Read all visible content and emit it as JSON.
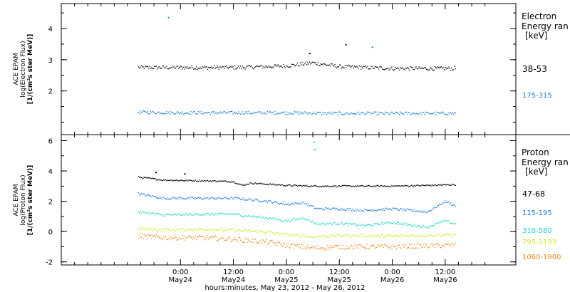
{
  "colors": {
    "electron_38_53": "#000000",
    "electron_175_315": "#1f7fd8",
    "proton_47_68": "#000000",
    "proton_115_195": "#1f7fd8",
    "proton_310_580": "#22d8c8",
    "proton_795_1193": "#c8ee2a",
    "proton_1060_1900": "#f08a1c"
  },
  "x_axis": {
    "label": "hours:minutes, May 23, 2012 - May 26, 2012",
    "ticks": [
      {
        "time": "0:00",
        "date": "May24"
      },
      {
        "time": "12:00",
        "date": "May24"
      },
      {
        "time": "0:00",
        "date": "May25"
      },
      {
        "time": "12:00",
        "date": "May25"
      },
      {
        "time": "0:00",
        "date": "May26"
      },
      {
        "time": "12:00",
        "date": "May26"
      }
    ]
  },
  "chart_data": [
    {
      "type": "scatter",
      "title": "",
      "ylabel_lines": [
        "ACE EPAM",
        "log(Electron Flux)",
        "[1/(cm²s ster MeV)]"
      ],
      "ylim": [
        0.6,
        4.8
      ],
      "yticks": [
        "2",
        "3",
        "4"
      ],
      "grid": false,
      "legend_placement": "right",
      "legend_title_lines": [
        "Electron",
        "Energy ran",
        "[keV]"
      ],
      "x_hours_from_May23_0000": [
        14.5,
        86.3
      ],
      "series": [
        {
          "name": "38-53",
          "color_key": "electron_38_53",
          "x": [
            14.5,
            24,
            36,
            48,
            54,
            60,
            72,
            84,
            86.3
          ],
          "y": [
            2.75,
            2.75,
            2.75,
            2.8,
            2.9,
            2.78,
            2.72,
            2.72,
            2.72
          ]
        },
        {
          "name": "175-315",
          "color_key": "electron_175_315",
          "x": [
            14.5,
            24,
            36,
            48,
            60,
            72,
            86.3
          ],
          "y": [
            1.32,
            1.3,
            1.3,
            1.3,
            1.28,
            1.28,
            1.28
          ]
        }
      ],
      "outliers": [
        {
          "x": 21.3,
          "y": 4.35,
          "series": "175-315"
        },
        {
          "x": 53.3,
          "y": 3.2,
          "series": "38-53"
        },
        {
          "x": 61.5,
          "y": 3.48,
          "series": "38-53"
        },
        {
          "x": 67.5,
          "y": 3.4,
          "series": "175-315"
        }
      ]
    },
    {
      "type": "scatter",
      "title": "",
      "ylabel_lines": [
        "ACE EPAM",
        "log(Proton Flux)",
        "[1/(cm²s ster MeV)]"
      ],
      "ylim": [
        -2.2,
        6.4
      ],
      "yticks": [
        "-2",
        "0",
        "2",
        "4",
        "6"
      ],
      "grid": false,
      "legend_placement": "right",
      "legend_title_lines": [
        "Proton",
        "Energy ran",
        "[keV]"
      ],
      "series": [
        {
          "name": "47-68",
          "color_key": "proton_47_68",
          "x": [
            14.5,
            20,
            30,
            36,
            38,
            40,
            48,
            54,
            60,
            72,
            80,
            86.3
          ],
          "y": [
            3.6,
            3.4,
            3.35,
            3.3,
            3.05,
            3.2,
            3.05,
            3.0,
            3.0,
            3.0,
            3.05,
            3.1
          ]
        },
        {
          "name": "115-195",
          "color_key": "proton_115_195",
          "x": [
            14.5,
            20,
            30,
            36,
            40,
            44,
            48,
            52,
            55,
            60,
            66,
            72,
            80,
            84,
            86.3
          ],
          "y": [
            2.5,
            2.2,
            2.2,
            2.2,
            2.1,
            2.0,
            1.8,
            1.9,
            1.5,
            1.5,
            1.4,
            1.5,
            1.3,
            2.0,
            1.7
          ]
        },
        {
          "name": "310-580",
          "color_key": "proton_310_580",
          "x": [
            14.5,
            20,
            30,
            36,
            40,
            44,
            48,
            52,
            55,
            60,
            66,
            72,
            80,
            84,
            86.3
          ],
          "y": [
            1.3,
            1.1,
            1.15,
            1.15,
            1.0,
            0.9,
            0.7,
            0.9,
            0.5,
            0.55,
            0.4,
            0.6,
            0.3,
            0.7,
            0.5
          ]
        },
        {
          "name": "795-1193",
          "color_key": "proton_795_1193",
          "x": [
            14.5,
            20,
            30,
            36,
            44,
            48,
            54,
            60,
            72,
            86.3
          ],
          "y": [
            0.2,
            0.1,
            0.15,
            0.1,
            -0.05,
            -0.2,
            -0.35,
            -0.25,
            -0.3,
            -0.2
          ]
        },
        {
          "name": "1060-1900",
          "color_key": "proton_1060_1900",
          "x": [
            14.5,
            20,
            30,
            36,
            44,
            48,
            54,
            60,
            72,
            86.3
          ],
          "y": [
            -0.3,
            -0.4,
            -0.4,
            -0.5,
            -0.7,
            -0.9,
            -1.1,
            -1.0,
            -1.0,
            -0.9
          ]
        }
      ],
      "outliers": [
        {
          "x": 54.3,
          "y": 5.9,
          "series": "310-580"
        },
        {
          "x": 54.5,
          "y": 5.4,
          "series": "310-580"
        },
        {
          "x": 18.5,
          "y": 3.9,
          "series": "47-68"
        },
        {
          "x": 25.0,
          "y": 3.8,
          "series": "47-68"
        }
      ]
    }
  ]
}
